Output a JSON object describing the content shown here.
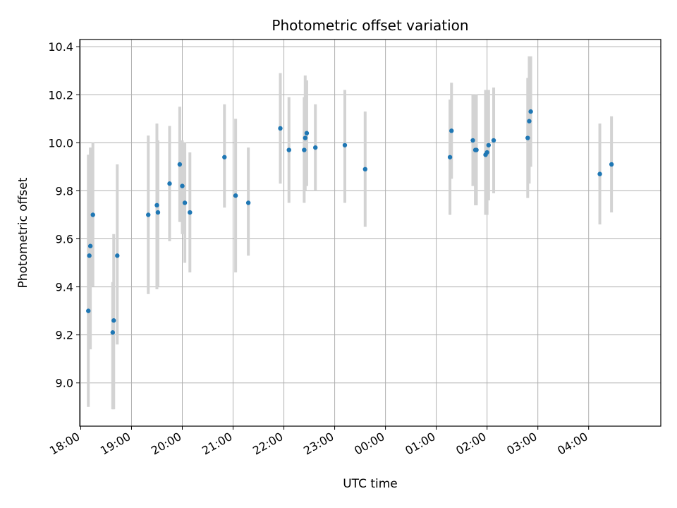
{
  "chart_data": {
    "type": "scatter",
    "title": "Photometric offset variation",
    "xlabel": "UTC time",
    "ylabel": "Photometric offset",
    "x_unit": "UTC hours (times after 24:00 fall on the following day)",
    "xlim": [
      17.98,
      29.42
    ],
    "ylim": [
      8.82,
      10.43
    ],
    "x_ticks": [
      18,
      19,
      20,
      21,
      22,
      23,
      24,
      25,
      26,
      27,
      28
    ],
    "x_tick_labels": [
      "18:00",
      "19:00",
      "20:00",
      "21:00",
      "22:00",
      "23:00",
      "00:00",
      "01:00",
      "02:00",
      "03:00",
      "04:00"
    ],
    "y_ticks": [
      9.0,
      9.2,
      9.4,
      9.6,
      9.8,
      10.0,
      10.2,
      10.4
    ],
    "y_tick_labels": [
      "9.0",
      "9.2",
      "9.4",
      "9.6",
      "9.8",
      "10.0",
      "10.2",
      "10.4"
    ],
    "grid": true,
    "colors": {
      "point": "#1f77b4",
      "errorbar": "#d3d3d3",
      "grid": "#b0b0b0"
    },
    "points": [
      {
        "x": 18.15,
        "y": 9.3,
        "err_low": 0.4,
        "err_high": 0.65
      },
      {
        "x": 18.17,
        "y": 9.53,
        "err_low": 0.38,
        "err_high": 0.42
      },
      {
        "x": 18.19,
        "y": 9.57,
        "err_low": 0.43,
        "err_high": 0.41
      },
      {
        "x": 18.24,
        "y": 9.7,
        "err_low": 0.3,
        "err_high": 0.3
      },
      {
        "x": 18.63,
        "y": 9.21,
        "err_low": 0.32,
        "err_high": 0.21
      },
      {
        "x": 18.65,
        "y": 9.26,
        "err_low": 0.37,
        "err_high": 0.36
      },
      {
        "x": 18.72,
        "y": 9.53,
        "err_low": 0.37,
        "err_high": 0.38
      },
      {
        "x": 19.33,
        "y": 9.7,
        "err_low": 0.33,
        "err_high": 0.33
      },
      {
        "x": 19.5,
        "y": 9.74,
        "err_low": 0.35,
        "err_high": 0.34
      },
      {
        "x": 19.52,
        "y": 9.71,
        "err_low": 0.31,
        "err_high": 0.3
      },
      {
        "x": 19.75,
        "y": 9.83,
        "err_low": 0.24,
        "err_high": 0.24
      },
      {
        "x": 19.95,
        "y": 9.91,
        "err_low": 0.24,
        "err_high": 0.24
      },
      {
        "x": 20.0,
        "y": 9.82,
        "err_low": 0.2,
        "err_high": 0.19
      },
      {
        "x": 20.05,
        "y": 9.75,
        "err_low": 0.25,
        "err_high": 0.25
      },
      {
        "x": 20.15,
        "y": 9.71,
        "err_low": 0.25,
        "err_high": 0.25
      },
      {
        "x": 20.83,
        "y": 9.94,
        "err_low": 0.21,
        "err_high": 0.22
      },
      {
        "x": 21.05,
        "y": 9.78,
        "err_low": 0.32,
        "err_high": 0.32
      },
      {
        "x": 21.3,
        "y": 9.75,
        "err_low": 0.22,
        "err_high": 0.23
      },
      {
        "x": 21.93,
        "y": 10.06,
        "err_low": 0.23,
        "err_high": 0.23
      },
      {
        "x": 22.1,
        "y": 9.97,
        "err_low": 0.22,
        "err_high": 0.22
      },
      {
        "x": 22.4,
        "y": 9.97,
        "err_low": 0.22,
        "err_high": 0.22
      },
      {
        "x": 22.42,
        "y": 10.02,
        "err_low": 0.22,
        "err_high": 0.26
      },
      {
        "x": 22.45,
        "y": 10.04,
        "err_low": 0.22,
        "err_high": 0.22
      },
      {
        "x": 22.62,
        "y": 9.98,
        "err_low": 0.18,
        "err_high": 0.18
      },
      {
        "x": 23.2,
        "y": 9.99,
        "err_low": 0.24,
        "err_high": 0.23
      },
      {
        "x": 23.6,
        "y": 9.89,
        "err_low": 0.24,
        "err_high": 0.24
      },
      {
        "x": 25.27,
        "y": 9.94,
        "err_low": 0.24,
        "err_high": 0.24
      },
      {
        "x": 25.3,
        "y": 10.05,
        "err_low": 0.2,
        "err_high": 0.2
      },
      {
        "x": 25.72,
        "y": 10.01,
        "err_low": 0.19,
        "err_high": 0.19
      },
      {
        "x": 25.77,
        "y": 9.97,
        "err_low": 0.23,
        "err_high": 0.23
      },
      {
        "x": 25.79,
        "y": 9.97,
        "err_low": 0.23,
        "err_high": 0.23
      },
      {
        "x": 25.97,
        "y": 9.95,
        "err_low": 0.25,
        "err_high": 0.27
      },
      {
        "x": 26.0,
        "y": 9.96,
        "err_low": 0.26,
        "err_high": 0.26
      },
      {
        "x": 26.03,
        "y": 9.99,
        "err_low": 0.23,
        "err_high": 0.23
      },
      {
        "x": 26.13,
        "y": 10.01,
        "err_low": 0.22,
        "err_high": 0.22
      },
      {
        "x": 26.8,
        "y": 10.02,
        "err_low": 0.25,
        "err_high": 0.25
      },
      {
        "x": 26.83,
        "y": 10.09,
        "err_low": 0.26,
        "err_high": 0.27
      },
      {
        "x": 26.86,
        "y": 10.13,
        "err_low": 0.23,
        "err_high": 0.23
      },
      {
        "x": 28.22,
        "y": 9.87,
        "err_low": 0.21,
        "err_high": 0.21
      },
      {
        "x": 28.45,
        "y": 9.91,
        "err_low": 0.2,
        "err_high": 0.2
      }
    ]
  }
}
